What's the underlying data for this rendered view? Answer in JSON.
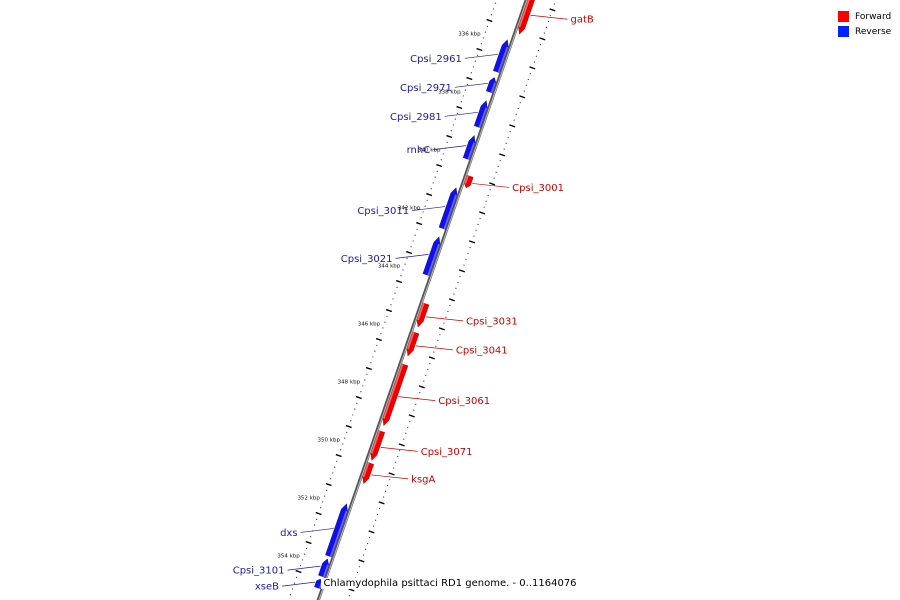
{
  "caption": "Chlamydophila psittaci RD1 genome. - 0..1164076",
  "legend": {
    "items": [
      {
        "label": "Forward",
        "color": "#ff0000"
      },
      {
        "label": "Reverse",
        "color": "#0022ff"
      }
    ]
  },
  "colors": {
    "forward_fill": "#ee0000",
    "forward_light": "#ff7777",
    "forward_label": "#cc0000",
    "reverse_fill": "#1010ee",
    "reverse_light": "#7777ff",
    "reverse_label": "#1a1aaa",
    "backbone": "#777777",
    "ticks": "#000000"
  },
  "axis": {
    "unit": "kbp",
    "major_labels": [
      {
        "kbp": 336,
        "label": "336 kbp"
      },
      {
        "kbp": 338,
        "label": "338 kbp"
      },
      {
        "kbp": 340,
        "label": "340 kbp"
      },
      {
        "kbp": 342,
        "label": "342 kbp"
      },
      {
        "kbp": 344,
        "label": "344 kbp"
      },
      {
        "kbp": 346,
        "label": "346 kbp"
      },
      {
        "kbp": 348,
        "label": "348 kbp"
      },
      {
        "kbp": 350,
        "label": "350 kbp"
      },
      {
        "kbp": 352,
        "label": "352 kbp"
      },
      {
        "kbp": 354,
        "label": "354 kbp"
      }
    ],
    "visible_range_kbp": [
      334.2,
      354.8
    ]
  },
  "genes": [
    {
      "name": "gatB",
      "strand": "forward",
      "start": 334.2,
      "end": 335.6,
      "partial": true
    },
    {
      "name": "Cpsi_2961",
      "strand": "reverse",
      "start": 335.9,
      "end": 337.0
    },
    {
      "name": "Cpsi_2971",
      "strand": "reverse",
      "start": 337.2,
      "end": 337.7
    },
    {
      "name": "Cpsi_2981",
      "strand": "reverse",
      "start": 338.0,
      "end": 338.9
    },
    {
      "name": "rnhC",
      "strand": "reverse",
      "start": 339.2,
      "end": 340.0
    },
    {
      "name": "Cpsi_3001",
      "strand": "forward",
      "start": 340.5,
      "end": 340.9
    },
    {
      "name": "Cpsi_3011",
      "strand": "reverse",
      "start": 341.0,
      "end": 342.4
    },
    {
      "name": "Cpsi_3021",
      "strand": "reverse",
      "start": 342.7,
      "end": 344.0
    },
    {
      "name": "Cpsi_3031",
      "strand": "forward",
      "start": 344.9,
      "end": 345.7
    },
    {
      "name": "Cpsi_3041",
      "strand": "forward",
      "start": 345.9,
      "end": 346.7
    },
    {
      "name": "Cpsi_3061",
      "strand": "forward",
      "start": 347.0,
      "end": 349.1
    },
    {
      "name": "Cpsi_3071",
      "strand": "forward",
      "start": 349.3,
      "end": 350.3
    },
    {
      "name": "ksgA",
      "strand": "forward",
      "start": 350.4,
      "end": 351.1
    },
    {
      "name": "dxs",
      "strand": "reverse",
      "start": 351.9,
      "end": 353.7
    },
    {
      "name": "Cpsi_3101",
      "strand": "reverse",
      "start": 353.8,
      "end": 354.4
    },
    {
      "name": "xseB",
      "strand": "reverse",
      "start": 354.5,
      "end": 354.8,
      "partial": true
    }
  ]
}
